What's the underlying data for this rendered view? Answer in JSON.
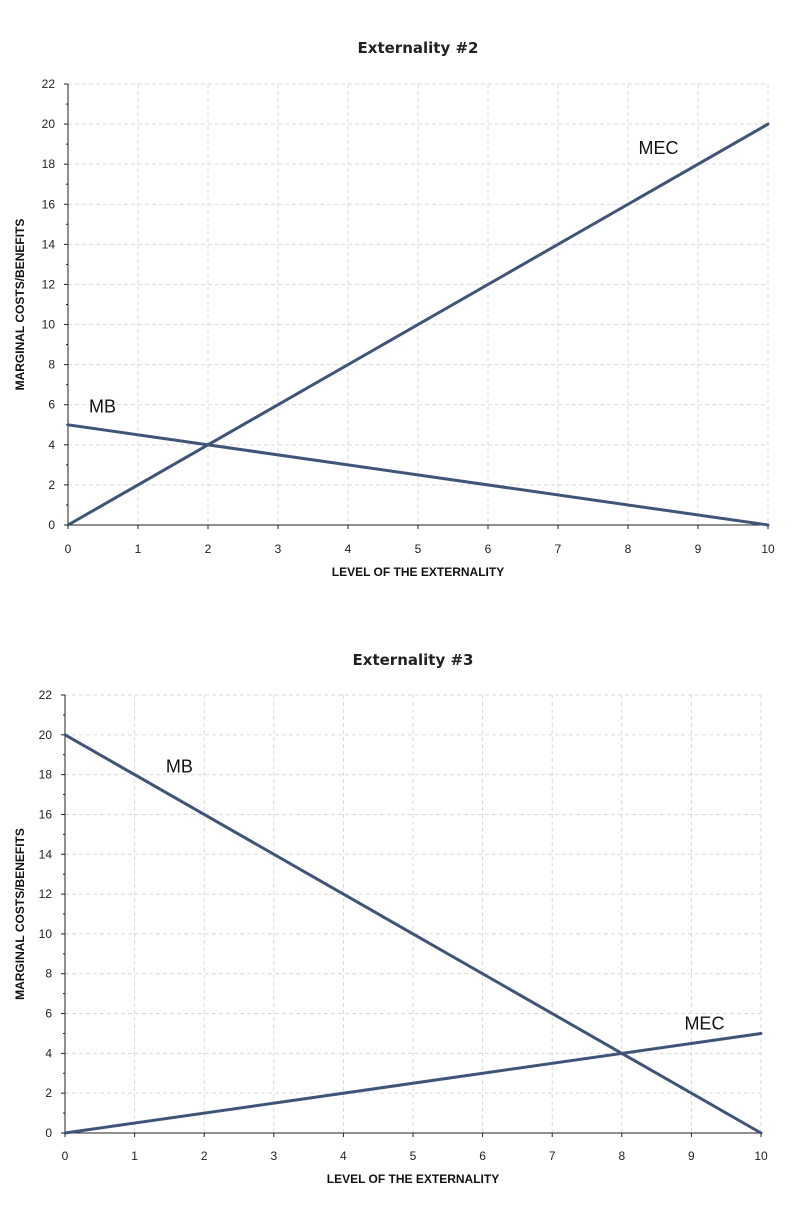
{
  "chart_data": [
    {
      "type": "line",
      "title": "Externality #2",
      "xlabel": "LEVEL OF THE EXTERNALITY",
      "ylabel": "MARGINAL COSTS/BENEFITS",
      "xlim": [
        0,
        10
      ],
      "ylim": [
        0,
        22
      ],
      "x_ticks": [
        0,
        1,
        2,
        3,
        4,
        5,
        6,
        7,
        8,
        9,
        10
      ],
      "y_ticks": [
        0,
        2,
        4,
        6,
        8,
        10,
        12,
        14,
        16,
        18,
        20,
        22
      ],
      "grid": true,
      "color": "#3f5479",
      "series": [
        {
          "name": "MEC",
          "points": [
            [
              0,
              0
            ],
            [
              10,
              20
            ]
          ]
        },
        {
          "name": "MB",
          "points": [
            [
              0,
              5
            ],
            [
              10,
              0
            ]
          ]
        }
      ],
      "annotations": [
        {
          "text": "MEC",
          "x": 8.15,
          "y": 18.5
        },
        {
          "text": "MB",
          "x": 0.3,
          "y": 5.6
        }
      ]
    },
    {
      "type": "line",
      "title": "Externality #3",
      "xlabel": "LEVEL OF THE EXTERNALITY",
      "ylabel": "MARGINAL COSTS/BENEFITS",
      "xlim": [
        0,
        10
      ],
      "ylim": [
        0,
        22
      ],
      "x_ticks": [
        0,
        1,
        2,
        3,
        4,
        5,
        6,
        7,
        8,
        9,
        10
      ],
      "y_ticks": [
        0,
        2,
        4,
        6,
        8,
        10,
        12,
        14,
        16,
        18,
        20,
        22
      ],
      "grid": true,
      "color": "#3f5479",
      "series": [
        {
          "name": "MB",
          "points": [
            [
              0,
              20
            ],
            [
              10,
              0
            ]
          ]
        },
        {
          "name": "MEC",
          "points": [
            [
              0,
              0
            ],
            [
              10,
              5
            ]
          ]
        }
      ],
      "annotations": [
        {
          "text": "MB",
          "x": 1.45,
          "y": 18.1
        },
        {
          "text": "MEC",
          "x": 8.9,
          "y": 5.2
        }
      ]
    }
  ]
}
